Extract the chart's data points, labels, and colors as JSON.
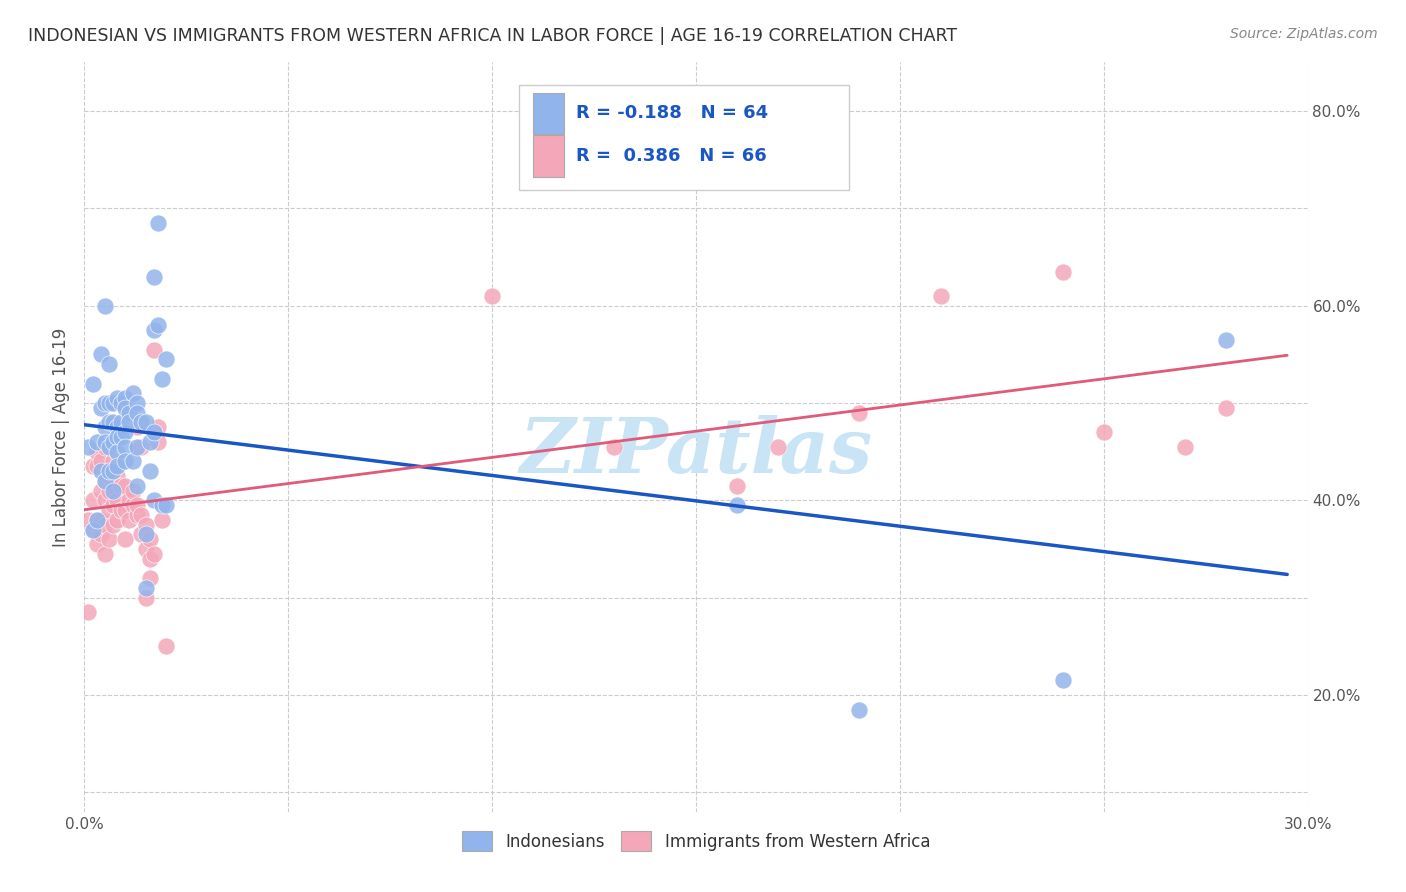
{
  "title": "INDONESIAN VS IMMIGRANTS FROM WESTERN AFRICA IN LABOR FORCE | AGE 16-19 CORRELATION CHART",
  "source": "Source: ZipAtlas.com",
  "ylabel": "In Labor Force | Age 16-19",
  "xlim": [
    0.0,
    0.3
  ],
  "ylim": [
    0.08,
    0.85
  ],
  "x_ticks": [
    0.0,
    0.05,
    0.1,
    0.15,
    0.2,
    0.25,
    0.3
  ],
  "y_ticks": [
    0.1,
    0.2,
    0.3,
    0.4,
    0.5,
    0.6,
    0.7,
    0.8
  ],
  "blue_R": -0.188,
  "blue_N": 64,
  "pink_R": 0.386,
  "pink_N": 66,
  "blue_color": "#92B4EC",
  "pink_color": "#F4A7B9",
  "blue_line_color": "#1A56C4",
  "pink_line_color": "#E05A7A",
  "blue_scatter": [
    [
      0.001,
      0.455
    ],
    [
      0.002,
      0.37
    ],
    [
      0.002,
      0.52
    ],
    [
      0.003,
      0.46
    ],
    [
      0.003,
      0.38
    ],
    [
      0.004,
      0.55
    ],
    [
      0.004,
      0.495
    ],
    [
      0.004,
      0.43
    ],
    [
      0.005,
      0.6
    ],
    [
      0.005,
      0.5
    ],
    [
      0.005,
      0.475
    ],
    [
      0.005,
      0.46
    ],
    [
      0.005,
      0.42
    ],
    [
      0.006,
      0.54
    ],
    [
      0.006,
      0.5
    ],
    [
      0.006,
      0.48
    ],
    [
      0.006,
      0.455
    ],
    [
      0.006,
      0.43
    ],
    [
      0.007,
      0.5
    ],
    [
      0.007,
      0.48
    ],
    [
      0.007,
      0.46
    ],
    [
      0.007,
      0.43
    ],
    [
      0.007,
      0.41
    ],
    [
      0.008,
      0.505
    ],
    [
      0.008,
      0.475
    ],
    [
      0.008,
      0.465
    ],
    [
      0.008,
      0.45
    ],
    [
      0.008,
      0.435
    ],
    [
      0.009,
      0.5
    ],
    [
      0.009,
      0.48
    ],
    [
      0.009,
      0.465
    ],
    [
      0.01,
      0.505
    ],
    [
      0.01,
      0.495
    ],
    [
      0.01,
      0.47
    ],
    [
      0.01,
      0.455
    ],
    [
      0.01,
      0.44
    ],
    [
      0.011,
      0.49
    ],
    [
      0.011,
      0.48
    ],
    [
      0.012,
      0.51
    ],
    [
      0.012,
      0.44
    ],
    [
      0.013,
      0.5
    ],
    [
      0.013,
      0.49
    ],
    [
      0.013,
      0.455
    ],
    [
      0.013,
      0.415
    ],
    [
      0.014,
      0.48
    ],
    [
      0.015,
      0.48
    ],
    [
      0.015,
      0.365
    ],
    [
      0.015,
      0.31
    ],
    [
      0.016,
      0.46
    ],
    [
      0.016,
      0.43
    ],
    [
      0.017,
      0.63
    ],
    [
      0.017,
      0.575
    ],
    [
      0.017,
      0.47
    ],
    [
      0.017,
      0.4
    ],
    [
      0.018,
      0.685
    ],
    [
      0.018,
      0.58
    ],
    [
      0.019,
      0.525
    ],
    [
      0.019,
      0.395
    ],
    [
      0.02,
      0.545
    ],
    [
      0.02,
      0.395
    ],
    [
      0.16,
      0.395
    ],
    [
      0.19,
      0.185
    ],
    [
      0.24,
      0.215
    ],
    [
      0.28,
      0.565
    ]
  ],
  "pink_scatter": [
    [
      0.001,
      0.285
    ],
    [
      0.001,
      0.38
    ],
    [
      0.002,
      0.37
    ],
    [
      0.002,
      0.4
    ],
    [
      0.002,
      0.435
    ],
    [
      0.003,
      0.355
    ],
    [
      0.003,
      0.38
    ],
    [
      0.003,
      0.435
    ],
    [
      0.003,
      0.45
    ],
    [
      0.004,
      0.365
    ],
    [
      0.004,
      0.38
    ],
    [
      0.004,
      0.41
    ],
    [
      0.004,
      0.44
    ],
    [
      0.005,
      0.345
    ],
    [
      0.005,
      0.375
    ],
    [
      0.005,
      0.4
    ],
    [
      0.005,
      0.42
    ],
    [
      0.005,
      0.455
    ],
    [
      0.006,
      0.36
    ],
    [
      0.006,
      0.39
    ],
    [
      0.006,
      0.41
    ],
    [
      0.006,
      0.43
    ],
    [
      0.007,
      0.375
    ],
    [
      0.007,
      0.395
    ],
    [
      0.007,
      0.415
    ],
    [
      0.007,
      0.44
    ],
    [
      0.008,
      0.38
    ],
    [
      0.008,
      0.4
    ],
    [
      0.008,
      0.425
    ],
    [
      0.009,
      0.39
    ],
    [
      0.009,
      0.415
    ],
    [
      0.01,
      0.36
    ],
    [
      0.01,
      0.39
    ],
    [
      0.01,
      0.415
    ],
    [
      0.011,
      0.38
    ],
    [
      0.011,
      0.4
    ],
    [
      0.012,
      0.395
    ],
    [
      0.012,
      0.41
    ],
    [
      0.013,
      0.385
    ],
    [
      0.013,
      0.475
    ],
    [
      0.013,
      0.395
    ],
    [
      0.014,
      0.455
    ],
    [
      0.014,
      0.385
    ],
    [
      0.014,
      0.365
    ],
    [
      0.015,
      0.3
    ],
    [
      0.015,
      0.35
    ],
    [
      0.015,
      0.375
    ],
    [
      0.016,
      0.32
    ],
    [
      0.016,
      0.34
    ],
    [
      0.016,
      0.36
    ],
    [
      0.017,
      0.555
    ],
    [
      0.017,
      0.345
    ],
    [
      0.018,
      0.475
    ],
    [
      0.018,
      0.46
    ],
    [
      0.019,
      0.38
    ],
    [
      0.02,
      0.25
    ],
    [
      0.1,
      0.61
    ],
    [
      0.13,
      0.455
    ],
    [
      0.16,
      0.415
    ],
    [
      0.17,
      0.455
    ],
    [
      0.19,
      0.49
    ],
    [
      0.21,
      0.61
    ],
    [
      0.24,
      0.635
    ],
    [
      0.25,
      0.47
    ],
    [
      0.27,
      0.455
    ],
    [
      0.28,
      0.495
    ]
  ],
  "watermark": "ZIPatlas",
  "watermark_color": "#C8E4F5",
  "legend_labels": [
    "Indonesians",
    "Immigrants from Western Africa"
  ],
  "legend_text_color": "#1A56C4",
  "legend_R_color": "#1A56C4"
}
